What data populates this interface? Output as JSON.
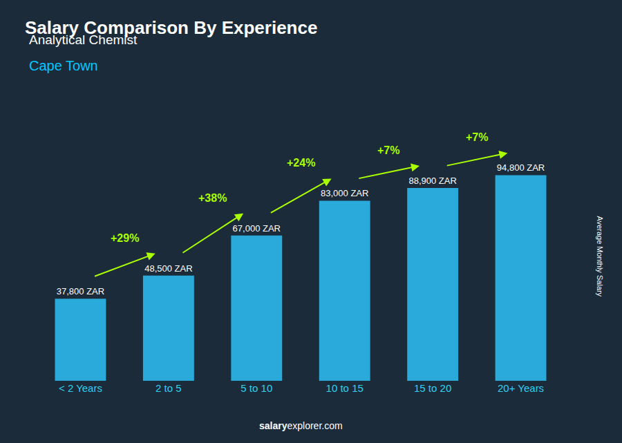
{
  "chart_data": {
    "type": "bar",
    "title": "Salary Comparison By Experience",
    "subtitle": [
      "Analytical Chemist",
      "Cape Town"
    ],
    "ylabel": "Average Monthly Salary",
    "categories": [
      "< 2 Years",
      "2 to 5",
      "5 to 10",
      "10 to 15",
      "15 to 20",
      "20+ Years"
    ],
    "values": [
      37800,
      48500,
      67000,
      83000,
      88900,
      94800
    ],
    "value_labels": [
      "37,800 ZAR",
      "48,500 ZAR",
      "67,000 ZAR",
      "83,000 ZAR",
      "88,900 ZAR",
      "94,800 ZAR"
    ],
    "data_labels": true,
    "annotations": [
      "+29%",
      "+38%",
      "+24%",
      "+7%",
      "+7%"
    ],
    "footer": [
      "salary",
      "explorer.com"
    ],
    "color": "#29AADB",
    "ylim": [
      0,
      115000
    ],
    "grid": false,
    "tick_labels": "x"
  }
}
